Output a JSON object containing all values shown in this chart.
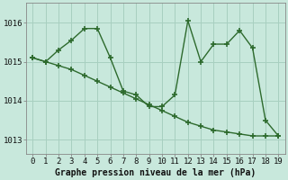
{
  "x": [
    0,
    1,
    2,
    3,
    4,
    5,
    6,
    7,
    8,
    9,
    10,
    11,
    12,
    13,
    14,
    15,
    16,
    17,
    18,
    19
  ],
  "y_main": [
    1015.1,
    1015.0,
    1015.3,
    1015.55,
    1015.85,
    1015.85,
    1015.1,
    1014.25,
    1014.15,
    1013.85,
    1013.85,
    1014.15,
    1016.05,
    1015.0,
    1015.45,
    1015.45,
    1015.8,
    1015.35,
    1013.5,
    1013.1
  ],
  "y_trend": [
    1015.1,
    1015.0,
    1014.9,
    1014.8,
    1014.65,
    1014.5,
    1014.35,
    1014.2,
    1014.05,
    1013.9,
    1013.75,
    1013.6,
    1013.45,
    1013.35,
    1013.25,
    1013.2,
    1013.15,
    1013.1,
    1013.1,
    1013.1
  ],
  "line_color": "#2d6a2d",
  "bg_color": "#c8e8dc",
  "grid_color": "#a8cfc0",
  "ylabel_ticks": [
    1013,
    1014,
    1015,
    1016
  ],
  "ylim": [
    1012.65,
    1016.5
  ],
  "xlim": [
    -0.5,
    19.5
  ],
  "xlabel": "Graphe pression niveau de la mer (hPa)",
  "xlabel_fontsize": 7,
  "tick_fontsize": 6.5,
  "marker": "+",
  "linewidth": 1.0,
  "markersize": 4,
  "markeredgewidth": 1.2
}
